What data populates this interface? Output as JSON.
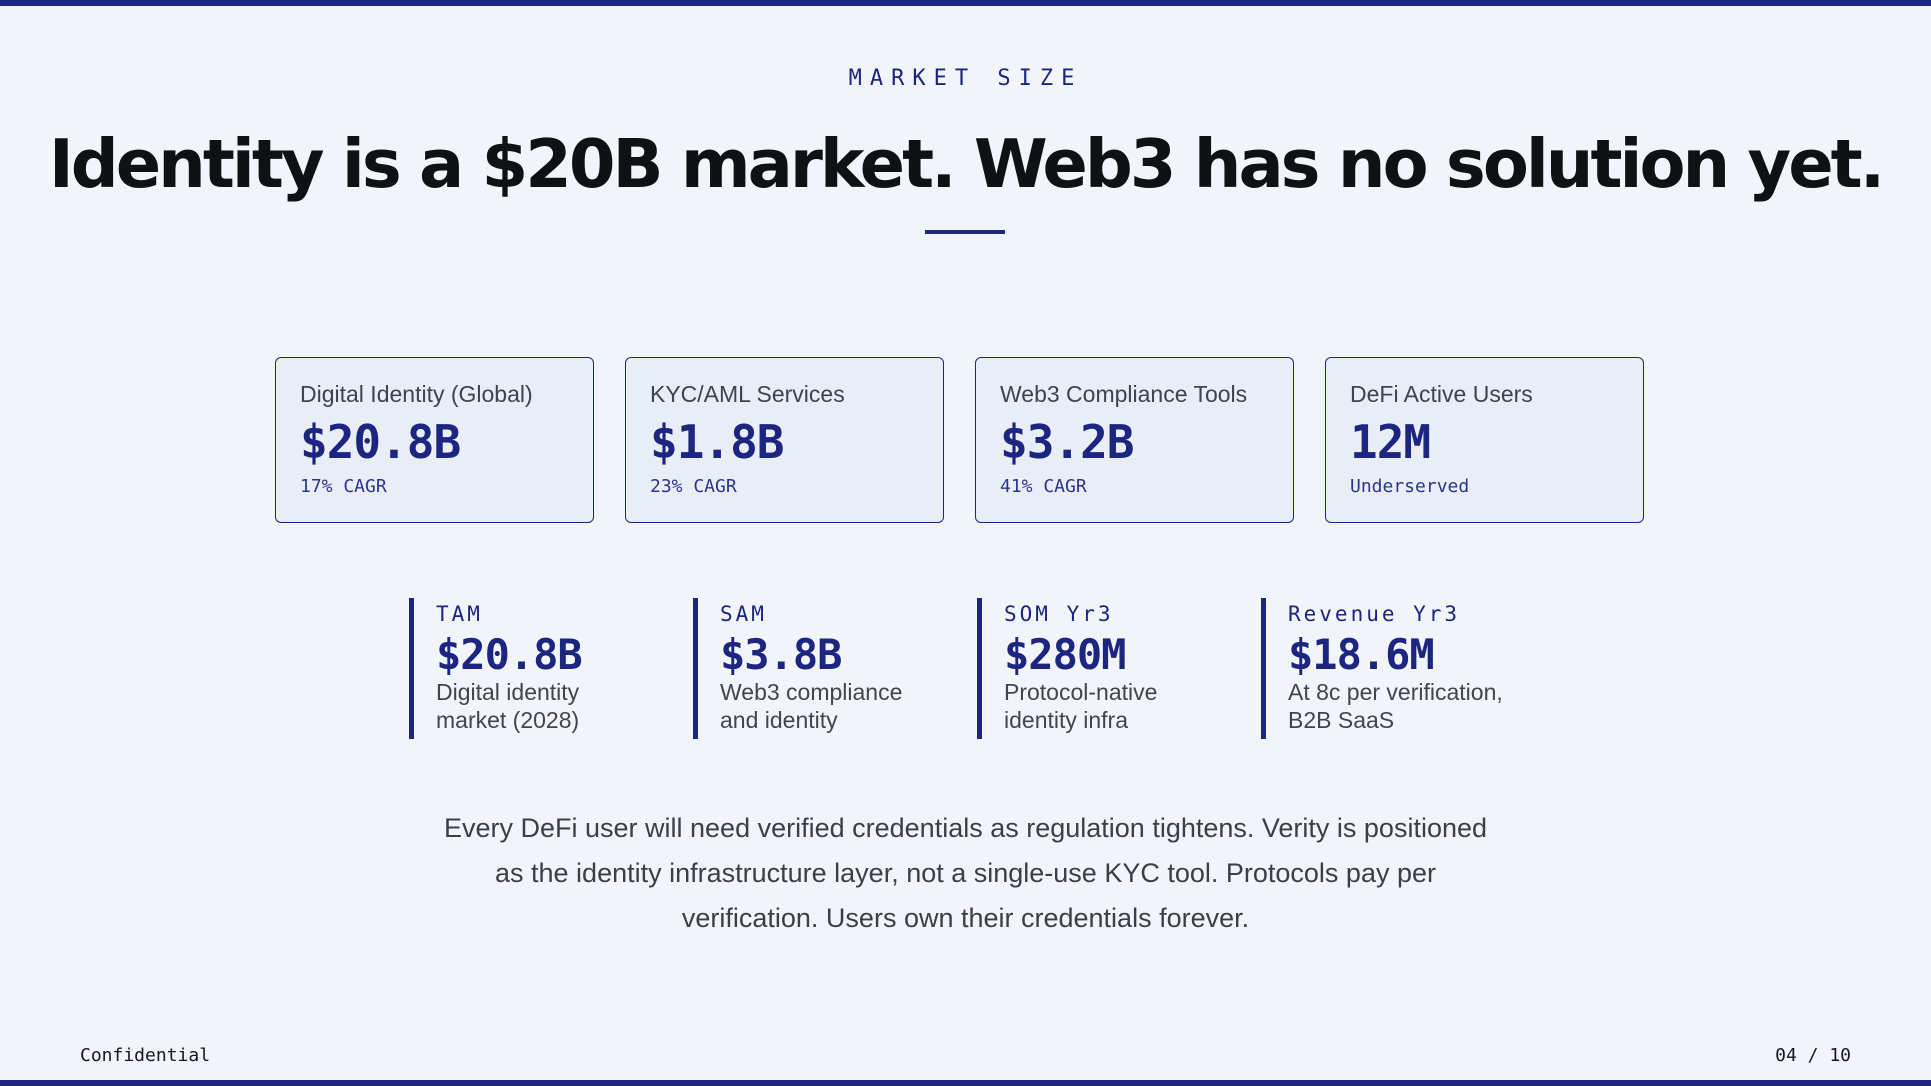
{
  "slide": {
    "eyebrow": "MARKET SIZE",
    "title": "Identity is a $20B market. Web3 has no solution yet.",
    "accent_color": "#1c2580",
    "background_color": "#f1f4f9"
  },
  "cards": [
    {
      "label": "Digital Identity (Global)",
      "value": "$20.8B",
      "note": "17% CAGR"
    },
    {
      "label": "KYC/AML Services",
      "value": "$1.8B",
      "note": "23% CAGR"
    },
    {
      "label": "Web3 Compliance Tools",
      "value": "$3.2B",
      "note": "41% CAGR"
    },
    {
      "label": "DeFi Active Users",
      "value": "12M",
      "note": "Underserved"
    }
  ],
  "metrics": [
    {
      "label": "TAM",
      "value": "$20.8B",
      "desc": "Digital identity\nmarket (2028)"
    },
    {
      "label": "SAM",
      "value": "$3.8B",
      "desc": "Web3 compliance\nand identity"
    },
    {
      "label": "SOM Yr3",
      "value": "$280M",
      "desc": "Protocol-native\nidentity infra"
    },
    {
      "label": "Revenue Yr3",
      "value": "$18.6M",
      "desc": "At 8c per verification,\nB2B SaaS"
    }
  ],
  "summary": "Every DeFi user will need verified credentials as regulation tightens. Verity is positioned as the identity infrastructure layer, not a single-use KYC tool. Protocols pay per verification. Users own their credentials forever.",
  "footer": {
    "left": "Confidential",
    "page": "04 / 10"
  }
}
